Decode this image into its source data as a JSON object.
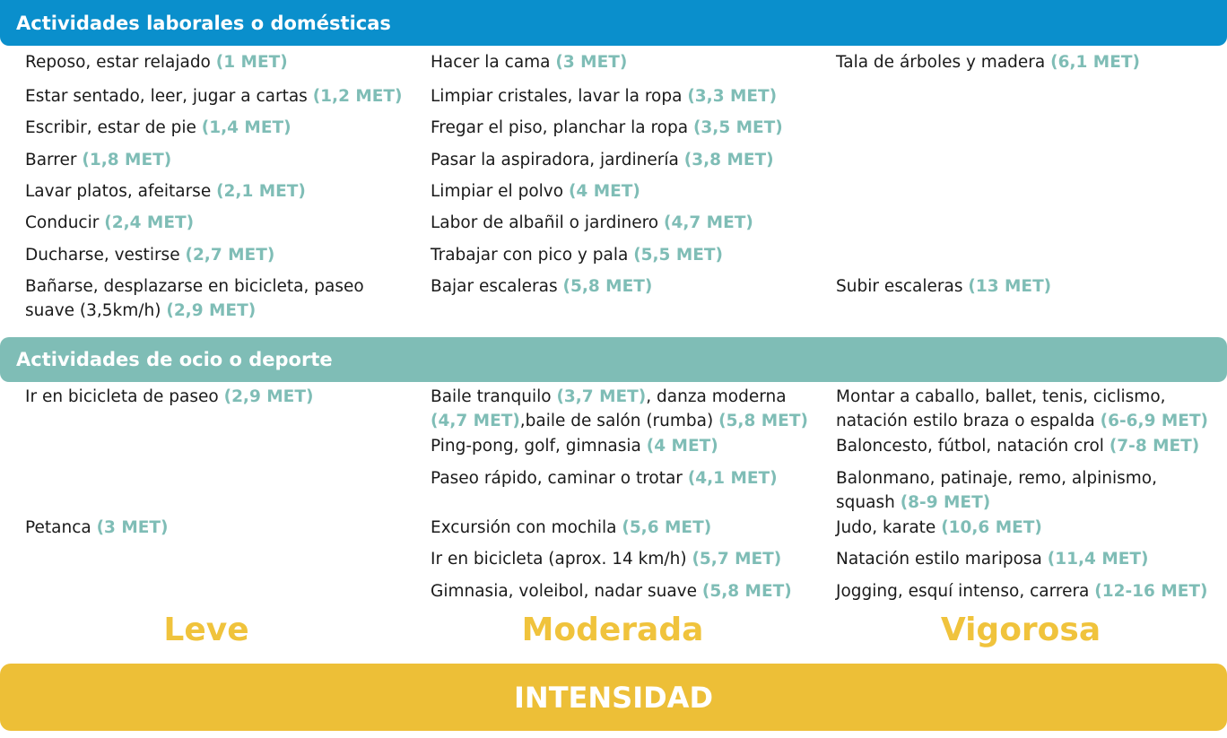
{
  "sections": {
    "work_title": "Actividades laborales o domésticas",
    "leisure_title": "Actividades de ocio o deporte"
  },
  "work": {
    "leve": [
      {
        "text": "Reposo, estar relajado",
        "met": "(1 MET)"
      },
      {
        "text": "Estar sentado, leer, jugar a cartas",
        "met": "(1,2 MET)"
      },
      {
        "text": "Escribir, estar de pie",
        "met": "(1,4 MET)"
      },
      {
        "text": "Barrer",
        "met": "(1,8 MET)"
      },
      {
        "text": "Lavar platos, afeitarse",
        "met": "(2,1 MET)"
      },
      {
        "text": "Conducir",
        "met": "(2,4 MET)"
      },
      {
        "text": "Ducharse, vestirse",
        "met": "(2,7 MET)"
      },
      {
        "text": "Bañarse, desplazarse en bicicleta, paseo",
        "text2": "suave (3,5km/h)",
        "met": "(2,9 MET)"
      }
    ],
    "moderada": [
      {
        "text": "Hacer la cama",
        "met": "(3 MET)"
      },
      {
        "text": "Limpiar cristales, lavar la ropa",
        "met": "(3,3 MET)"
      },
      {
        "text": "Fregar el piso, planchar la ropa",
        "met": "(3,5 MET)"
      },
      {
        "text": "Pasar la aspiradora, jardinería",
        "met": "(3,8 MET)"
      },
      {
        "text": "Limpiar el polvo",
        "met": "(4 MET)"
      },
      {
        "text": "Labor de  albañil o jardinero",
        "met": "(4,7 MET)"
      },
      {
        "text": "Trabajar con pico y pala",
        "met": "(5,5 MET)"
      },
      {
        "text": "Bajar escaleras",
        "met": "(5,8 MET)"
      }
    ],
    "vigorosa": [
      {
        "text": "Tala de árboles y madera",
        "met": "(6,1 MET)"
      },
      {
        "text": "Subir escaleras",
        "met": "(13 MET)"
      }
    ]
  },
  "leisure": {
    "leve": [
      {
        "text": "Ir en bicicleta de paseo",
        "met": "(2,9 MET)"
      },
      {
        "text": "Petanca",
        "met": "(3 MET)"
      }
    ],
    "moderada": [
      {
        "line1_text": "Baile tranquilo",
        "line1_met": "(3,7 MET)",
        "line1_tail": ", danza moderna",
        "line2_met": "(4,7 MET)",
        "line2_text": ",baile de salón (rumba)",
        "line2_met2": "(5,8 MET)"
      },
      {
        "text": "Ping-pong, golf, gimnasia",
        "met": "(4 MET)"
      },
      {
        "text": "Paseo rápido, caminar o trotar",
        "met": "(4,1 MET)"
      },
      {
        "text": "Excursión con mochila",
        "met": "(5,6 MET)"
      },
      {
        "text": "Ir en bicicleta (aprox. 14 km/h)",
        "met": "(5,7 MET)"
      },
      {
        "text": "Gimnasia, voleibol, nadar  suave",
        "met": "(5,8 MET)"
      }
    ],
    "vigorosa": [
      {
        "text": "Montar a caballo, ballet, tenis, ciclismo,",
        "text2": "natación estilo braza o espalda",
        "met": "(6-6,9 MET)"
      },
      {
        "text": "Baloncesto, fútbol, natación crol",
        "met": "(7-8 MET)"
      },
      {
        "text": "Balonmano, patinaje, remo, alpinismo,",
        "text2": "squash",
        "met": "(8-9 MET)"
      },
      {
        "text": "Judo, karate",
        "met": "(10,6 MET)"
      },
      {
        "text": "Natación estilo mariposa",
        "met": "(11,4 MET)"
      },
      {
        "text": "Jogging, esquí intenso, carrera",
        "met": "(12-16 MET)"
      }
    ]
  },
  "levels": {
    "leve": "Leve",
    "moderada": "Moderada",
    "vigorosa": "Vigorosa"
  },
  "footer": {
    "intensity": "INTENSIDAD"
  },
  "colors": {
    "work_banner": "#0a8fcc",
    "leisure_banner": "#7fbdb6",
    "met_value": "#7fbdb6",
    "level_text": "#f0c33c",
    "intensity_bar": "#edbf37"
  }
}
